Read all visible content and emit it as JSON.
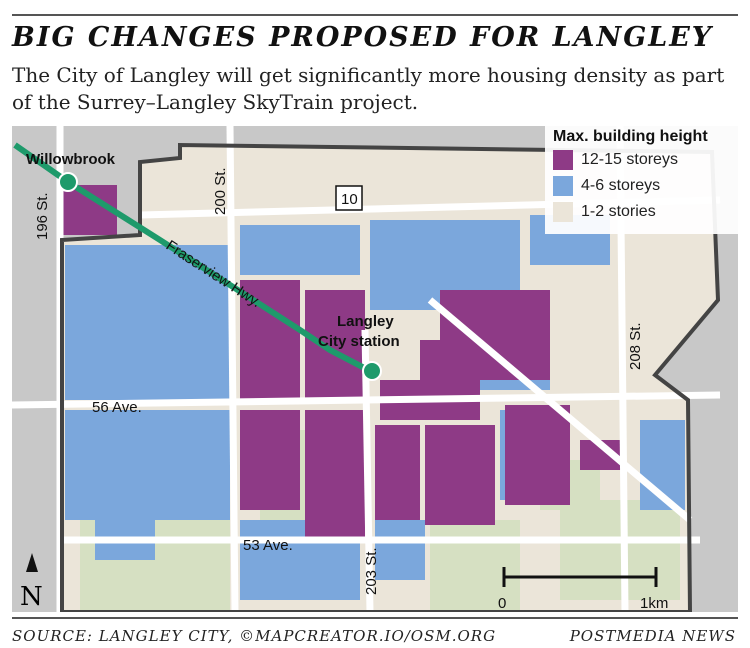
{
  "title": "BIG CHANGES PROPOSED FOR LANGLEY",
  "subtitle": "The City of Langley will get significantly more housing density as part of the Surrey–Langley SkyTrain project.",
  "legend": {
    "title": "Max. building height",
    "items": [
      {
        "label": "12-15 storeys",
        "color": "#8e3a86"
      },
      {
        "label": "4-6 storeys",
        "color": "#7ba7dc"
      },
      {
        "label": "1-2 stories",
        "color": "#ebe5d9"
      }
    ]
  },
  "map": {
    "stations": [
      "Willowbrook",
      "Langley",
      "City station"
    ],
    "line_label": "Fraserview Hwy.",
    "streets": [
      "196 St.",
      "200 St.",
      "203 St.",
      "208 St.",
      "56 Ave.",
      "53 Ave."
    ],
    "highway_shield": "10",
    "north": "N",
    "scale": {
      "start": "0",
      "end": "1km"
    },
    "colors": {
      "skytrain": "#1e9a6b",
      "boundary": "#444444",
      "outside": "#c8c8c8",
      "park": "#d6e0c2"
    }
  },
  "footer": {
    "source": "SOURCE: LANGLEY CITY, ©MAPCREATOR.IO/OSM.ORG",
    "credit": "POSTMEDIA NEWS"
  }
}
